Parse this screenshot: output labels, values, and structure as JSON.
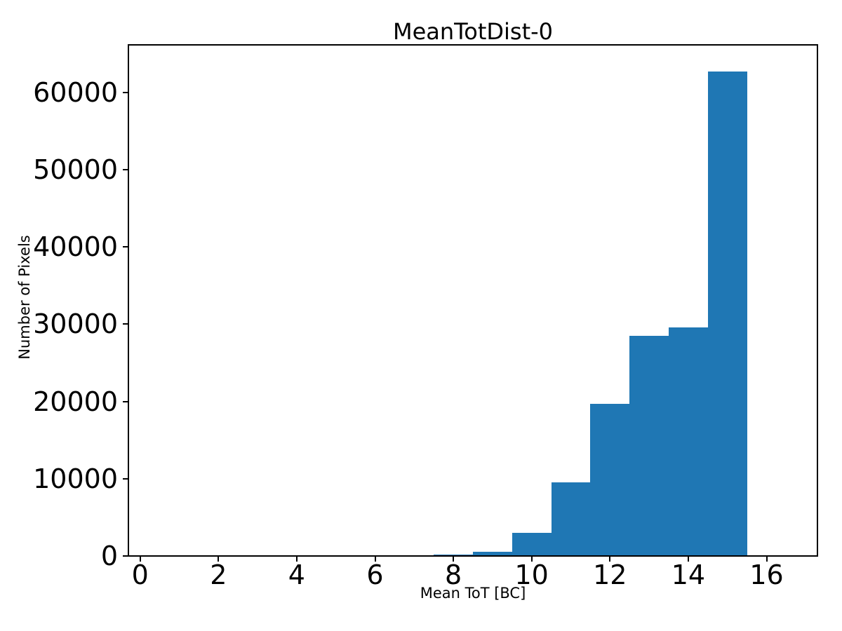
{
  "chart_data": {
    "type": "bar",
    "subtype": "histogram",
    "title": "MeanTotDist-0",
    "xlabel": "Mean ToT [BC]",
    "ylabel": "Number of Pixels",
    "bar_color": "#1f77b4",
    "axis_color": "#000000",
    "background_color": "#ffffff",
    "grid": false,
    "legend": null,
    "bin_edges": [
      0.5,
      1.5,
      2.5,
      3.5,
      4.5,
      5.5,
      6.5,
      7.5,
      8.5,
      9.5,
      10.5,
      11.5,
      12.5,
      13.5,
      14.5,
      15.5,
      16.5
    ],
    "counts": [
      0,
      0,
      0,
      0,
      0,
      0,
      0,
      180,
      550,
      3000,
      9500,
      19700,
      28500,
      29600,
      62700,
      0
    ],
    "xlim": [
      -0.3,
      17.3
    ],
    "ylim": [
      0,
      66150
    ],
    "xticks": {
      "values": [
        0,
        2,
        4,
        6,
        8,
        10,
        12,
        14,
        16
      ],
      "labels": [
        "0",
        "2",
        "4",
        "6",
        "8",
        "10",
        "12",
        "14",
        "16"
      ]
    },
    "yticks": {
      "values": [
        0,
        10000,
        20000,
        30000,
        40000,
        50000,
        60000
      ],
      "labels": [
        "0",
        "10000",
        "20000",
        "30000",
        "40000",
        "50000",
        "60000"
      ]
    }
  }
}
